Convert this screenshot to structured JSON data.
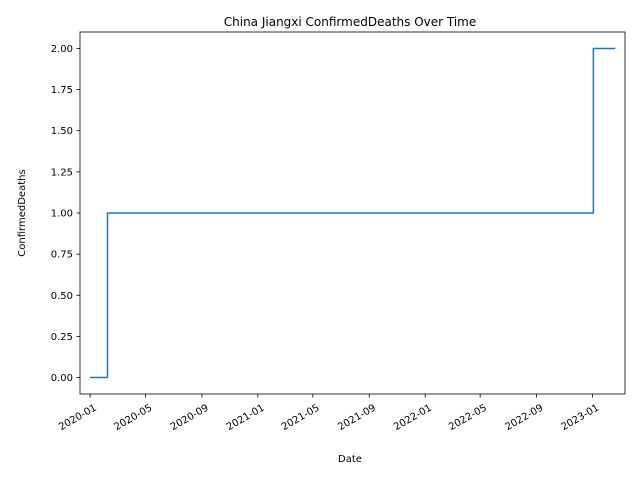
{
  "chart_data": {
    "type": "line",
    "title": "China Jiangxi ConfirmedDeaths Over Time",
    "xlabel": "Date",
    "ylabel": "ConfirmedDeaths",
    "xlim": [
      "2019-12-10",
      "2023-03-13"
    ],
    "ylim": [
      -0.1,
      2.1
    ],
    "grid": false,
    "legend": "none",
    "x_ticks": [
      "2020-01",
      "2020-05",
      "2020-09",
      "2021-01",
      "2021-05",
      "2021-09",
      "2022-01",
      "2022-05",
      "2022-09",
      "2023-01"
    ],
    "y_ticks": [
      "0.00",
      "0.25",
      "0.50",
      "0.75",
      "1.00",
      "1.25",
      "1.50",
      "1.75",
      "2.00"
    ],
    "series": [
      {
        "color": "#1f77b4",
        "drawstyle": "steps-post",
        "x": [
          "2020-01-01",
          "2020-02-08",
          "2023-01-03",
          "2023-02-20"
        ],
        "y": [
          0,
          1,
          2,
          2
        ]
      }
    ]
  }
}
